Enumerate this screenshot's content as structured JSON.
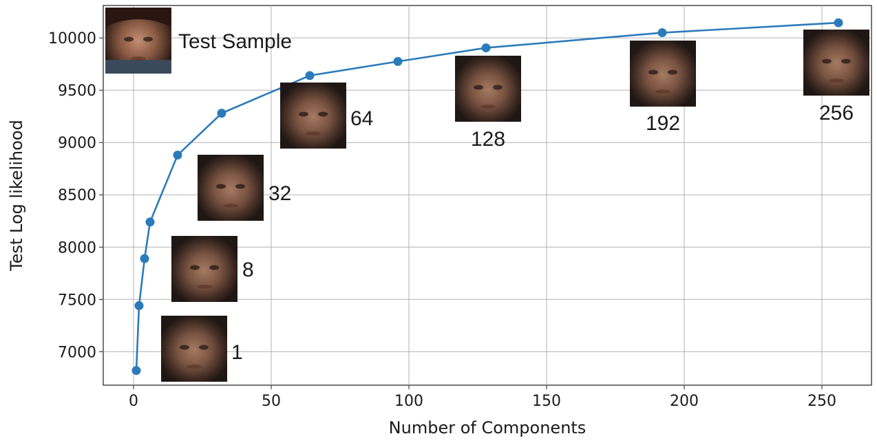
{
  "chart_data": {
    "type": "line",
    "xlabel": "Number of Components",
    "ylabel": "Test Log likelihood",
    "xlim": [
      -11,
      268
    ],
    "ylim": [
      6680,
      10310
    ],
    "xticks": [
      0,
      50,
      100,
      150,
      200,
      250
    ],
    "yticks": [
      7000,
      7500,
      8000,
      8500,
      9000,
      9500,
      10000
    ],
    "grid": true,
    "color": "#2b7bba",
    "series": [
      {
        "x": [
          1,
          2,
          4,
          6,
          16,
          32,
          64,
          96,
          128,
          192,
          256
        ],
        "y": [
          6820,
          7440,
          7890,
          8240,
          8880,
          9280,
          9640,
          9775,
          9905,
          10050,
          10145
        ]
      }
    ],
    "annotations": [
      {
        "text": "Test Sample",
        "icon": "face-photo-test-sample",
        "x": 5,
        "y": 9970
      },
      {
        "text": "1",
        "icon": "face-reconstruction-1",
        "x": 28,
        "y": 6840
      },
      {
        "text": "8",
        "icon": "face-reconstruction-8",
        "x": 18,
        "y": 7630
      },
      {
        "text": "32",
        "icon": "face-reconstruction-32",
        "x": 38,
        "y": 8400
      },
      {
        "text": "64",
        "icon": "face-reconstruction-64",
        "x": 75,
        "y": 9100
      },
      {
        "text": "128",
        "icon": "face-reconstruction-128",
        "x": 135,
        "y": 9450
      },
      {
        "text": "192",
        "icon": "face-reconstruction-192",
        "x": 205,
        "y": 9430
      },
      {
        "text": "256",
        "icon": "face-reconstruction-256",
        "x": 255,
        "y": 9560
      }
    ]
  }
}
